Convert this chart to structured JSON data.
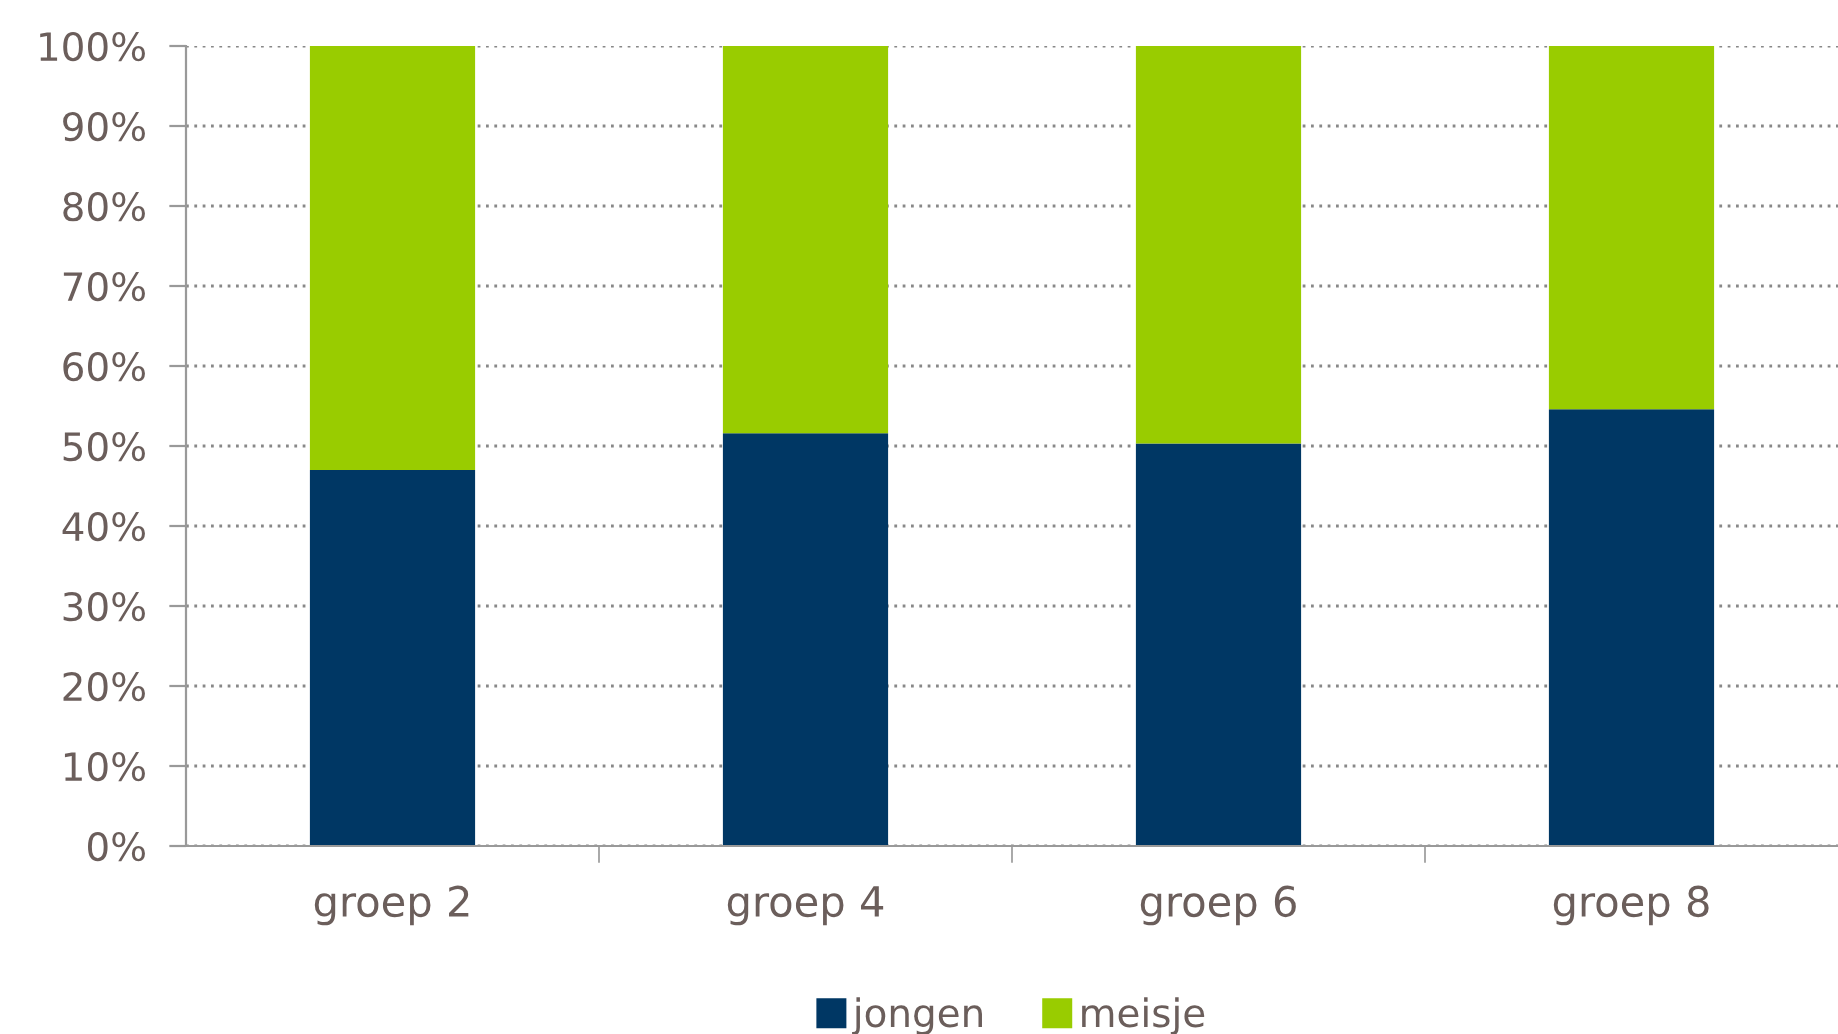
{
  "chart_data": {
    "type": "bar",
    "stacked": true,
    "categories": [
      "groep 2",
      "groep 4",
      "groep 6",
      "groep 8"
    ],
    "series": [
      {
        "name": "jongen",
        "color": "#003764",
        "values": [
          47,
          51.6,
          50.3,
          54.6
        ]
      },
      {
        "name": "meisje",
        "color": "#99cc00",
        "values": [
          53,
          48.4,
          49.7,
          45.4
        ]
      }
    ],
    "ylim": [
      0,
      100
    ],
    "yticks": [
      {
        "value": 0,
        "label": "0%"
      },
      {
        "value": 10,
        "label": "10%"
      },
      {
        "value": 20,
        "label": "20%"
      },
      {
        "value": 30,
        "label": "30%"
      },
      {
        "value": 40,
        "label": "40%"
      },
      {
        "value": 50,
        "label": "50%"
      },
      {
        "value": 60,
        "label": "60%"
      },
      {
        "value": 70,
        "label": "70%"
      },
      {
        "value": 80,
        "label": "80%"
      },
      {
        "value": 90,
        "label": "90%"
      },
      {
        "value": 100,
        "label": "100%"
      }
    ],
    "grid": "y",
    "legend": "bottom"
  }
}
